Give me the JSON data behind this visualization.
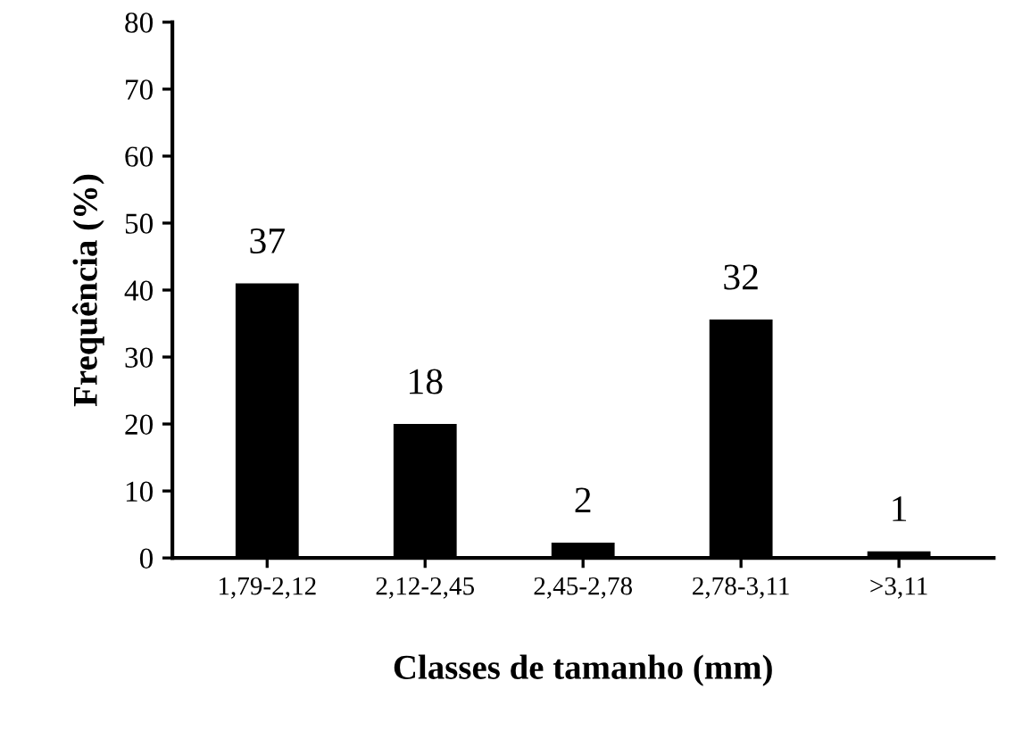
{
  "chart_data": {
    "type": "bar",
    "xlabel": "Classes de tamanho (mm)",
    "ylabel": "Frequência (%)",
    "categories": [
      "1,79-2,12",
      "2,12-2,45",
      "2,45-2,78",
      "2,78-3,11",
      ">3,11"
    ],
    "values": [
      41,
      20,
      2.3,
      35.6,
      1
    ],
    "annotations": [
      {
        "text": "37",
        "x": "1,79-2,12",
        "y": 41
      },
      {
        "text": "18",
        "x": "2,12-2,45",
        "y": 20
      },
      {
        "text": "2",
        "x": "2,45-2,78",
        "y": 2.3
      },
      {
        "text": "32",
        "x": "2,78-3,11",
        "y": 35.6
      },
      {
        "text": "1",
        "x": ">3,11",
        "y": 1
      }
    ],
    "color": "#000000",
    "ylim": [
      0,
      80
    ],
    "yticks": [
      0,
      10,
      20,
      30,
      40,
      50,
      60,
      70,
      80
    ],
    "grid": false,
    "legend": false
  }
}
